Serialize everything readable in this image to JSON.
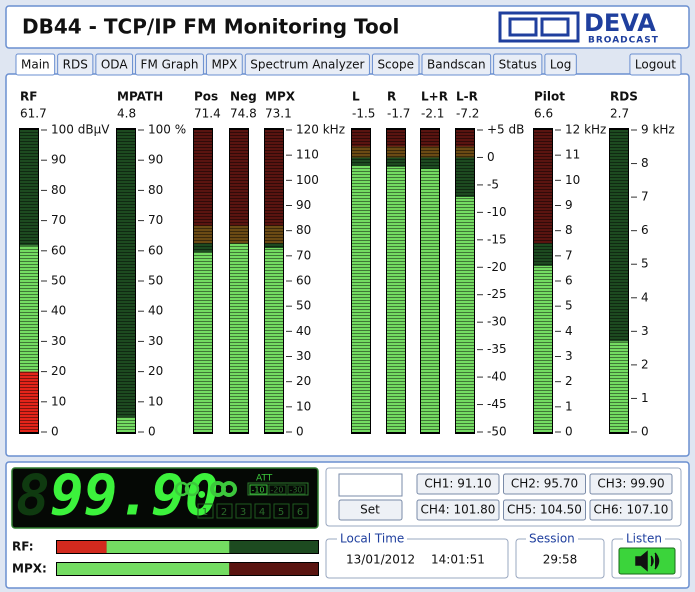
{
  "header": {
    "title": "DB44 - TCP/IP FM Monitoring Tool",
    "logo": "DEVA",
    "logo_tagline": "BROADCAST"
  },
  "tabs": [
    "Main",
    "RDS",
    "ODA",
    "FM Graph",
    "MPX",
    "Spectrum Analyzer",
    "Scope",
    "Bandscan",
    "Status",
    "Log"
  ],
  "logout": "Logout",
  "meter_groups": [
    {
      "ylim": [
        0,
        100
      ],
      "yticks": [
        0,
        10,
        20,
        30,
        40,
        50,
        60,
        70,
        80,
        90,
        {
          "value": 100,
          "label": "100 dBµV"
        }
      ],
      "zones": [
        {
          "from": 0,
          "to": 20,
          "lit": "#e3241a",
          "dim": "#5a1410"
        },
        {
          "from": 20,
          "to": 100,
          "lit": "#74dc62",
          "dim": "#1d4a20"
        }
      ],
      "meters": [
        {
          "name": "RF",
          "value": 61.7
        }
      ]
    },
    {
      "ylim": [
        0,
        100
      ],
      "yticks": [
        0,
        10,
        20,
        30,
        40,
        50,
        60,
        70,
        80,
        90,
        {
          "value": 100,
          "label": "100 %"
        }
      ],
      "zones": [
        {
          "from": 0,
          "to": 100,
          "lit": "#74dc62",
          "dim": "#1d4a20"
        }
      ],
      "meters": [
        {
          "name": "MPATH",
          "value": 4.8
        }
      ]
    },
    {
      "ylim": [
        0,
        120
      ],
      "yticks": [
        0,
        10,
        20,
        30,
        40,
        50,
        60,
        70,
        80,
        90,
        100,
        110,
        {
          "value": 120,
          "label": "120 kHz"
        }
      ],
      "zones": [
        {
          "from": 0,
          "to": 75,
          "lit": "#74dc62",
          "dim": "#1d4a20"
        },
        {
          "from": 75,
          "to": 82,
          "lit": "#e0a020",
          "dim": "#6b4a14"
        },
        {
          "from": 82,
          "to": 120,
          "lit": "#e3241a",
          "dim": "#5a1410"
        }
      ],
      "meters": [
        {
          "name": "Pos",
          "value": 71.4
        },
        {
          "name": "Neg",
          "value": 74.8
        },
        {
          "name": "MPX",
          "value": 73.1
        }
      ]
    },
    {
      "ylim": [
        -50,
        5
      ],
      "yticks": [
        {
          "value": 5,
          "label": "+5 dB"
        },
        0,
        -5,
        -10,
        -15,
        -20,
        -25,
        -30,
        -35,
        -40,
        -45,
        -50
      ],
      "zones": [
        {
          "from": -50,
          "to": 0,
          "lit": "#74dc62",
          "dim": "#1d4a20"
        },
        {
          "from": 0,
          "to": 2,
          "lit": "#e0a020",
          "dim": "#6b4a14"
        },
        {
          "from": 2,
          "to": 5,
          "lit": "#e3241a",
          "dim": "#5a1410"
        }
      ],
      "meters": [
        {
          "name": "L",
          "value": -1.5
        },
        {
          "name": "R",
          "value": -1.7
        },
        {
          "name": "L+R",
          "value": -2.1
        },
        {
          "name": "L-R",
          "value": -7.2
        }
      ]
    },
    {
      "ylim": [
        0,
        12
      ],
      "yticks": [
        0,
        1,
        2,
        3,
        4,
        5,
        6,
        7,
        8,
        9,
        10,
        11,
        {
          "value": 12,
          "label": "12 kHz"
        }
      ],
      "zones": [
        {
          "from": 0,
          "to": 7.5,
          "lit": "#74dc62",
          "dim": "#1d4a20"
        },
        {
          "from": 7.5,
          "to": 12,
          "lit": "#e3241a",
          "dim": "#5a1410"
        }
      ],
      "meters": [
        {
          "name": "Pilot",
          "value": 6.6
        }
      ]
    },
    {
      "ylim": [
        0,
        9
      ],
      "yticks": [
        0,
        1,
        2,
        3,
        4,
        5,
        6,
        7,
        8,
        {
          "value": 9,
          "label": "9 kHz"
        }
      ],
      "zones": [
        {
          "from": 0,
          "to": 9,
          "lit": "#74dc62",
          "dim": "#1d4a20"
        }
      ],
      "meters": [
        {
          "name": "RDS",
          "value": 2.7
        }
      ]
    }
  ],
  "receiver": {
    "ghost_digit": "8",
    "frequency": "99.90",
    "att_label": "ATT",
    "att": [
      "-10",
      "-20",
      "-30"
    ],
    "slots": [
      "1",
      "2",
      "3",
      "4",
      "5",
      "6"
    ]
  },
  "level_bars": [
    {
      "label": "RF:",
      "xlim": [
        0,
        100
      ],
      "value": 66,
      "zones": [
        {
          "from": 0,
          "to": 19,
          "lit": "#d22a1e",
          "dim": "#5a1410"
        },
        {
          "from": 19,
          "to": 100,
          "lit": "#74dc62",
          "dim": "#1d4a20"
        }
      ]
    },
    {
      "label": "MPX:",
      "xlim": [
        0,
        100
      ],
      "value": 66,
      "zones": [
        {
          "from": 0,
          "to": 66,
          "lit": "#74dc62",
          "dim": "#1d4a20"
        },
        {
          "from": 66,
          "to": 100,
          "lit": "#e3241a",
          "dim": "#5a1410"
        }
      ]
    }
  ],
  "memory": {
    "set": "Set",
    "channels": [
      "CH1: 91.10",
      "CH2: 95.70",
      "CH3: 99.90",
      "CH4: 101.80",
      "CH5: 104.50",
      "CH6: 107.10"
    ]
  },
  "local_time": {
    "label": "Local Time",
    "date": "13/01/2012",
    "time": "14:01:51"
  },
  "session": {
    "label": "Session",
    "value": "29:58"
  },
  "listen": {
    "label": "Listen"
  }
}
